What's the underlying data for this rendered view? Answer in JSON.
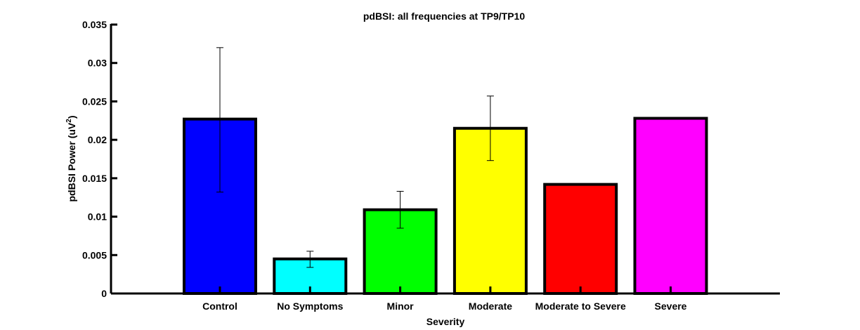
{
  "chart_data": {
    "type": "bar",
    "title": "pdBSI: all frequencies at TP9/TP10",
    "xlabel": "Severity",
    "ylabel_main": "pdBSI Power (uV",
    "ylabel_sup": "2",
    "ylabel_close": ")",
    "categories": [
      "Control",
      "No Symptoms",
      "Minor",
      "Moderate",
      "Moderate to Severe",
      "Severe"
    ],
    "values": [
      0.0227,
      0.0045,
      0.0109,
      0.0215,
      0.0142,
      0.0228
    ],
    "error_low": [
      0.0132,
      0.0034,
      0.0085,
      0.0173,
      null,
      null
    ],
    "error_high": [
      0.032,
      0.0055,
      0.0133,
      0.0257,
      null,
      null
    ],
    "colors": [
      "#0000ff",
      "#00ffff",
      "#00ff00",
      "#ffff00",
      "#ff0000",
      "#ff00ff"
    ],
    "ylim": [
      0,
      0.035
    ],
    "yticks": [
      "0",
      "0.005",
      "0.01",
      "0.015",
      "0.02",
      "0.025",
      "0.03",
      "0.035"
    ],
    "ytick_values": [
      0,
      0.005,
      0.01,
      0.015,
      0.02,
      0.025,
      0.03,
      0.035
    ],
    "grid": false,
    "legend": "none"
  }
}
